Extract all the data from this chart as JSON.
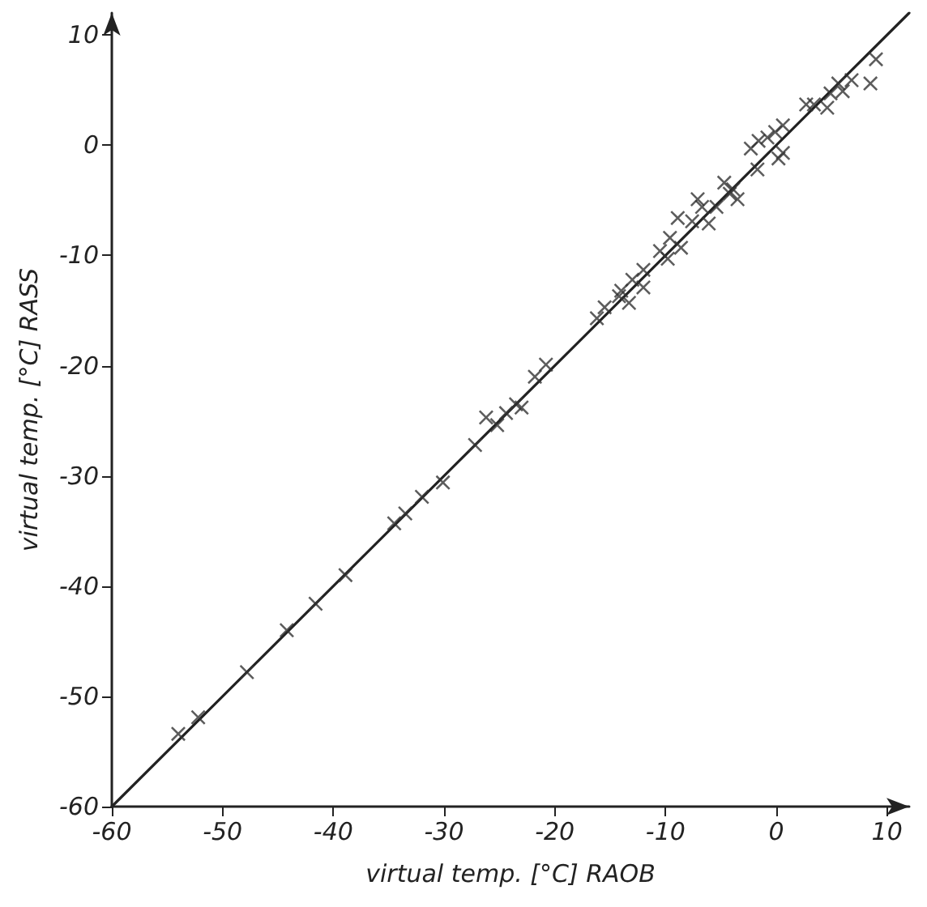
{
  "chart_data": {
    "type": "scatter",
    "xlabel": "virtual temp. [°C] RAOB",
    "ylabel": "virtual temp. [°C] RASS",
    "xlim": [
      -60,
      12
    ],
    "ylim": [
      -60,
      12
    ],
    "xticks": [
      -60,
      -50,
      -40,
      -30,
      -20,
      -10,
      0,
      10
    ],
    "yticks": [
      -60,
      -50,
      -40,
      -30,
      -20,
      -10,
      0,
      10
    ],
    "grid": false,
    "marker": "cross",
    "series": [
      {
        "type": "scatter",
        "color": "#333333",
        "x": [
          9.0,
          8.5,
          5.6,
          6.8,
          6.0,
          4.9,
          2.7,
          3.4,
          4.6,
          0.6,
          -0.1,
          -0.8,
          -1.6,
          -2.3,
          0.6,
          0.2,
          -1.7,
          -4.7,
          -3.9,
          -4.2,
          -3.5,
          -7.1,
          -6.7,
          -5.4,
          -8.9,
          -7.6,
          -6.1,
          -9.6,
          -8.6,
          -10.5,
          -9.8,
          -12.0,
          -13.0,
          -12.0,
          -14.0,
          -14.2,
          -13.3,
          -15.5,
          -16.2,
          -20.8,
          -21.8,
          -23.0,
          -23.5,
          -24.4,
          -25.2,
          -26.2,
          -27.2,
          -30.1,
          -32.0,
          -33.5,
          -34.5,
          -38.9,
          -41.6,
          -44.2,
          -47.8,
          -52.2,
          -54.0
        ],
        "values": [
          7.8,
          5.6,
          5.6,
          5.9,
          4.9,
          4.7,
          3.7,
          3.7,
          3.4,
          1.8,
          1.2,
          0.7,
          0.4,
          -0.3,
          -0.7,
          -1.2,
          -2.2,
          -3.4,
          -4.0,
          -4.4,
          -4.9,
          -4.9,
          -5.6,
          -5.6,
          -6.6,
          -6.9,
          -7.1,
          -8.4,
          -9.3,
          -9.6,
          -10.3,
          -11.3,
          -12.2,
          -12.9,
          -13.2,
          -13.7,
          -14.3,
          -14.7,
          -15.7,
          -19.9,
          -21.0,
          -23.8,
          -23.5,
          -24.3,
          -25.4,
          -24.7,
          -27.2,
          -30.6,
          -31.9,
          -33.4,
          -34.3,
          -39.0,
          -41.6,
          -44.0,
          -47.8,
          -51.9,
          -53.4
        ]
      },
      {
        "type": "line",
        "color": "#222222",
        "line_style": "solid",
        "marker": "none",
        "x": [
          -60,
          12
        ],
        "values": [
          -60,
          12
        ]
      }
    ]
  }
}
